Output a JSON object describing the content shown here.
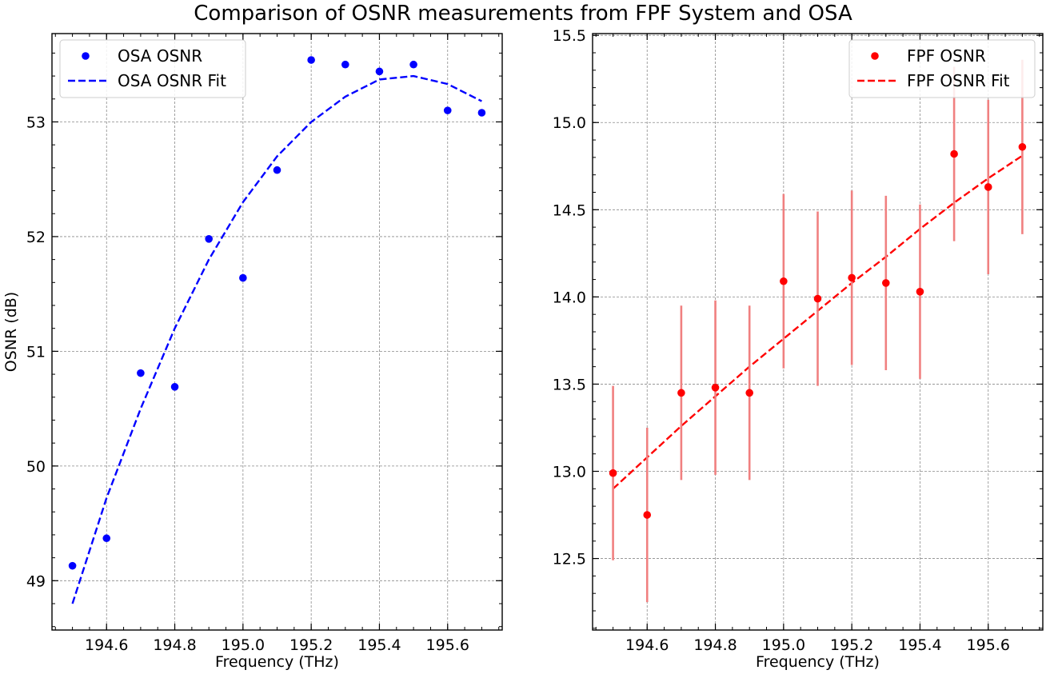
{
  "title": "Comparison of OSNR measurements from FPF System and OSA",
  "chart_data": [
    {
      "type": "scatter",
      "xlabel": "Frequency (THz)",
      "ylabel": "OSNR (dB)",
      "xlim": [
        194.44,
        195.76
      ],
      "ylim": [
        48.57,
        53.77
      ],
      "xticks": [
        "194.6",
        "194.8",
        "195.0",
        "195.2",
        "195.4",
        "195.6"
      ],
      "yticks": [
        "49",
        "50",
        "51",
        "52",
        "53"
      ],
      "grid": true,
      "legend_position": "top-left",
      "series": [
        {
          "name": "OSA OSNR",
          "kind": "points",
          "color": "#0000ff",
          "x": [
            194.5,
            194.6,
            194.7,
            194.8,
            194.9,
            195.0,
            195.1,
            195.2,
            195.3,
            195.4,
            195.5,
            195.6,
            195.7
          ],
          "y": [
            49.13,
            49.37,
            50.81,
            50.69,
            51.98,
            51.64,
            52.58,
            53.54,
            53.5,
            53.44,
            53.5,
            53.1,
            53.08
          ]
        },
        {
          "name": "OSA OSNR Fit",
          "kind": "dashed-line",
          "color": "#0000ff",
          "x": [
            194.5,
            194.6,
            194.7,
            194.8,
            194.9,
            195.0,
            195.1,
            195.2,
            195.3,
            195.4,
            195.5,
            195.6,
            195.7
          ],
          "y": [
            48.8,
            49.72,
            50.5,
            51.2,
            51.8,
            52.3,
            52.7,
            53.0,
            53.22,
            53.37,
            53.4,
            53.33,
            53.18
          ]
        }
      ]
    },
    {
      "type": "scatter",
      "xlabel": "Frequency (THz)",
      "ylabel": "",
      "xlim": [
        194.44,
        195.76
      ],
      "ylim": [
        12.09,
        15.51
      ],
      "xticks": [
        "194.6",
        "194.8",
        "195.0",
        "195.2",
        "195.4",
        "195.6"
      ],
      "yticks": [
        "12.5",
        "13.0",
        "13.5",
        "14.0",
        "14.5",
        "15.0",
        "15.5"
      ],
      "grid": true,
      "legend_position": "top-right",
      "series": [
        {
          "name": "FPF OSNR",
          "kind": "points-with-errorbars",
          "color": "#ff0000",
          "errorbar_color": "#f08080",
          "x": [
            194.5,
            194.6,
            194.7,
            194.8,
            194.9,
            195.0,
            195.1,
            195.2,
            195.3,
            195.4,
            195.5,
            195.6,
            195.7
          ],
          "y": [
            12.99,
            12.75,
            13.45,
            13.48,
            13.45,
            14.09,
            13.99,
            14.11,
            14.08,
            14.03,
            14.82,
            14.63,
            14.86
          ],
          "error": [
            0.5,
            0.5,
            0.5,
            0.5,
            0.5,
            0.5,
            0.5,
            0.5,
            0.5,
            0.5,
            0.5,
            0.5,
            0.5
          ]
        },
        {
          "name": "FPF OSNR Fit",
          "kind": "dashed-line",
          "color": "#ff0000",
          "x": [
            194.5,
            194.6,
            194.7,
            194.8,
            194.9,
            195.0,
            195.1,
            195.2,
            195.3,
            195.4,
            195.5,
            195.6,
            195.7
          ],
          "y": [
            12.9,
            13.08,
            13.26,
            13.43,
            13.6,
            13.76,
            13.92,
            14.08,
            14.23,
            14.39,
            14.54,
            14.68,
            14.81
          ]
        }
      ]
    }
  ]
}
